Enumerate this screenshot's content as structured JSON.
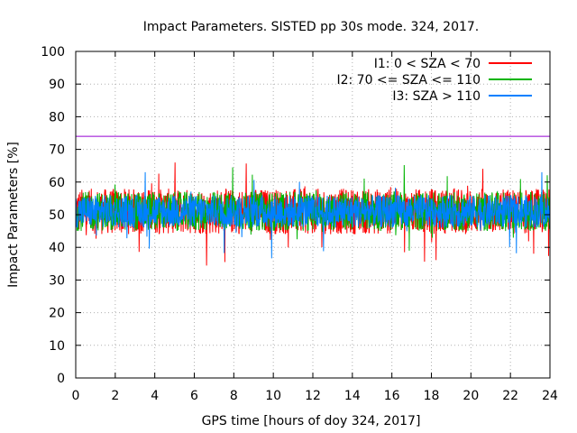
{
  "chart_data": {
    "type": "line",
    "title": "Impact Parameters. SISTED pp 30s mode. 324, 2017.",
    "xlabel": "GPS time [hours of doy 324, 2017]",
    "ylabel": "Impact Parameters [%]",
    "xlim": [
      0,
      24
    ],
    "ylim": [
      0,
      100
    ],
    "xticks": [
      0,
      2,
      4,
      6,
      8,
      10,
      12,
      14,
      16,
      18,
      20,
      22,
      24
    ],
    "yticks": [
      0,
      10,
      20,
      30,
      40,
      50,
      60,
      70,
      80,
      90,
      100
    ],
    "xtick_labels": [
      "0",
      "2",
      "4",
      "6",
      "8",
      "10",
      "12",
      "14",
      "16",
      "18",
      "20",
      "22",
      "24"
    ],
    "ytick_labels": [
      "0",
      "10",
      "20",
      "30",
      "40",
      "50",
      "60",
      "70",
      "80",
      "90",
      "100"
    ],
    "grid": true,
    "legend_position": "top-right",
    "reference_line": {
      "y": 74,
      "color": "#9400d3"
    },
    "series": [
      {
        "name": "I1: 0 < SZA < 70",
        "color": "#ff0000",
        "center": 51,
        "typical_range": [
          44,
          58
        ],
        "min": 34,
        "max": 66
      },
      {
        "name": "I2: 70 <= SZA <= 110",
        "color": "#00b400",
        "center": 51,
        "typical_range": [
          45,
          57
        ],
        "min": 39,
        "max": 66
      },
      {
        "name": "I3: SZA > 110",
        "color": "#0080ff",
        "center": 51,
        "typical_range": [
          46,
          56
        ],
        "min": 36,
        "max": 63
      }
    ]
  }
}
